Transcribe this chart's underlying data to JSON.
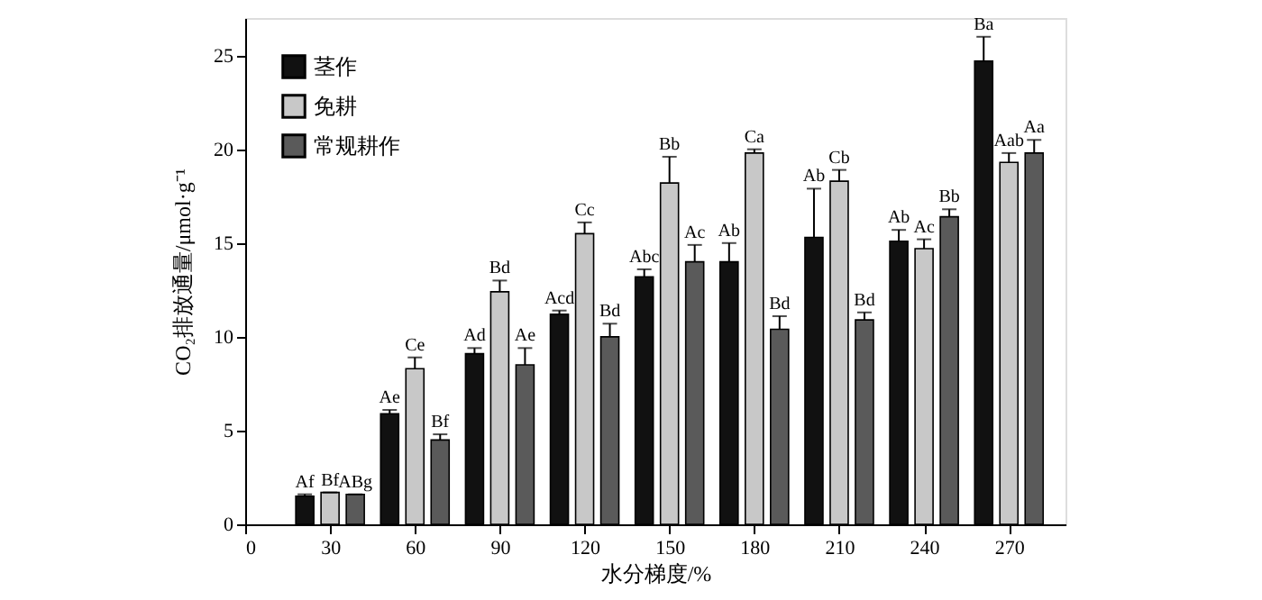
{
  "chart_data": {
    "type": "bar",
    "xlabel": "水分梯度/%",
    "ylabel": "CO₂排放通量/μmol·g⁻¹",
    "x": [
      30,
      60,
      90,
      120,
      150,
      180,
      210,
      240,
      270
    ],
    "xlim": [
      0,
      290
    ],
    "xticks": [
      0,
      30,
      60,
      90,
      120,
      150,
      180,
      210,
      240,
      270
    ],
    "ylim": [
      0,
      27
    ],
    "yticks": [
      0,
      5,
      10,
      15,
      20,
      25
    ],
    "grid": false,
    "legend": "top left",
    "series": [
      {
        "name": "茎作",
        "color": "#111111",
        "values": [
          1.5,
          5.9,
          9.1,
          11.2,
          13.2,
          14.0,
          15.3,
          15.1,
          24.7
        ],
        "errors": [
          [
            1.5,
            1.6
          ],
          [
            5.9,
            6.1
          ],
          [
            9.1,
            9.4
          ],
          [
            11.2,
            11.4
          ],
          [
            13.2,
            13.6
          ],
          [
            14.0,
            15.0
          ],
          [
            15.3,
            17.9
          ],
          [
            15.1,
            15.7
          ],
          [
            24.7,
            26.0
          ]
        ],
        "value_labels": [
          "Af",
          "Ae",
          "Ad",
          "Acd",
          "Abc",
          "Ab",
          "Ab",
          "Ab",
          "Ba"
        ]
      },
      {
        "name": "免耕",
        "color": "#c8c8c8",
        "values": [
          1.7,
          8.3,
          12.4,
          15.5,
          18.2,
          19.8,
          18.3,
          14.7,
          19.3
        ],
        "errors": [
          [
            1.7,
            1.7
          ],
          [
            8.3,
            8.9
          ],
          [
            12.4,
            13.0
          ],
          [
            15.5,
            16.1
          ],
          [
            18.2,
            19.6
          ],
          [
            19.8,
            20.0
          ],
          [
            18.3,
            18.9
          ],
          [
            14.7,
            15.2
          ],
          [
            19.3,
            19.8
          ]
        ],
        "value_labels": [
          "Bf",
          "Ce",
          "Bd",
          "Cc",
          "Bb",
          "Ca",
          "Cb",
          "Ac",
          "Aab"
        ]
      },
      {
        "name": "常规耕作",
        "color": "#5a5a5a",
        "values": [
          1.6,
          4.5,
          8.5,
          10.0,
          14.0,
          10.4,
          10.9,
          16.4,
          19.8
        ],
        "errors": [
          [
            1.6,
            1.6
          ],
          [
            4.5,
            4.8
          ],
          [
            8.5,
            9.4
          ],
          [
            10.0,
            10.7
          ],
          [
            14.0,
            14.9
          ],
          [
            10.4,
            11.1
          ],
          [
            10.9,
            11.3
          ],
          [
            16.4,
            16.8
          ],
          [
            19.8,
            20.5
          ]
        ],
        "value_labels": [
          "ABg",
          "Bf",
          "Ae",
          "Bd",
          "Ac",
          "Bd",
          "Bd",
          "Bb",
          "Aa"
        ]
      }
    ]
  }
}
